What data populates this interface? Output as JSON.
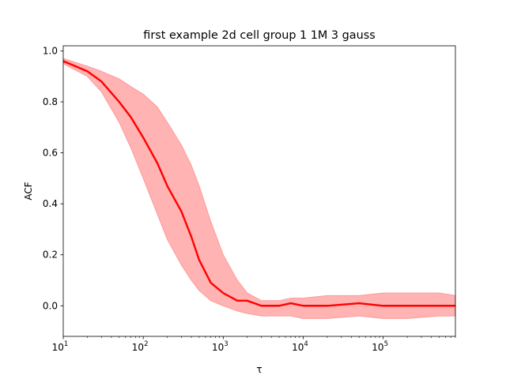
{
  "chart_data": {
    "type": "line",
    "title": "first example 2d cell group 1 1M 3 gauss",
    "xlabel": "τ",
    "ylabel": "ACF",
    "xscale": "log",
    "xlim": [
      10,
      800000
    ],
    "ylim": [
      -0.12,
      1.02
    ],
    "grid": false,
    "x_ticks": [
      {
        "value": 10,
        "base": "10",
        "exp": "1"
      },
      {
        "value": 100,
        "base": "10",
        "exp": "2"
      },
      {
        "value": 1000,
        "base": "10",
        "exp": "3"
      },
      {
        "value": 10000,
        "base": "10",
        "exp": "4"
      },
      {
        "value": 100000,
        "base": "10",
        "exp": "5"
      }
    ],
    "y_ticks": [
      {
        "value": 0.0,
        "label": "0.0"
      },
      {
        "value": 0.2,
        "label": "0.2"
      },
      {
        "value": 0.4,
        "label": "0.4"
      },
      {
        "value": 0.6,
        "label": "0.6"
      },
      {
        "value": 0.8,
        "label": "0.8"
      },
      {
        "value": 1.0,
        "label": "1.0"
      }
    ],
    "series": [
      {
        "color": "#ff0000",
        "band_color": "#ff9999",
        "x": [
          10,
          20,
          30,
          50,
          70,
          100,
          150,
          200,
          300,
          400,
          500,
          700,
          1000,
          1500,
          2000,
          3000,
          4000,
          5000,
          7000,
          10000,
          20000,
          50000,
          100000,
          200000,
          500000,
          800000
        ],
        "mean": [
          0.96,
          0.92,
          0.88,
          0.8,
          0.74,
          0.66,
          0.56,
          0.47,
          0.37,
          0.27,
          0.18,
          0.09,
          0.05,
          0.02,
          0.02,
          0.0,
          0.0,
          0.0,
          0.01,
          0.0,
          0.0,
          0.01,
          0.0,
          0.0,
          0.0,
          0.0
        ],
        "upper": [
          0.97,
          0.94,
          0.92,
          0.89,
          0.86,
          0.83,
          0.78,
          0.72,
          0.63,
          0.55,
          0.47,
          0.33,
          0.2,
          0.1,
          0.05,
          0.02,
          0.02,
          0.02,
          0.03,
          0.03,
          0.04,
          0.04,
          0.05,
          0.05,
          0.05,
          0.04
        ],
        "lower": [
          0.95,
          0.9,
          0.84,
          0.72,
          0.62,
          0.5,
          0.36,
          0.26,
          0.16,
          0.1,
          0.06,
          0.02,
          0.0,
          -0.02,
          -0.03,
          -0.04,
          -0.04,
          -0.04,
          -0.04,
          -0.05,
          -0.05,
          -0.04,
          -0.05,
          -0.05,
          -0.04,
          -0.04
        ]
      }
    ]
  }
}
